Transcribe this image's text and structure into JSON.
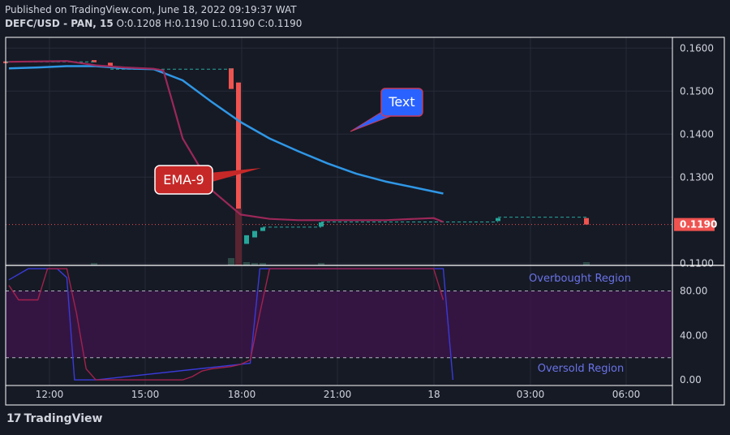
{
  "header": {
    "published": "Published on TradingView.com, June 18, 2022 09:19:37 WAT",
    "symbol": "DEFC/USD - PAN, 15",
    "ohlc": "O:0.1208 H:0.1190 L:0.1190 C:0.1190"
  },
  "footer": {
    "brand": "TradingView",
    "logo": "17"
  },
  "colors": {
    "ema": "#2f97e6",
    "price_line": "#9c2758",
    "up": "#26a69a",
    "down": "#ef5350",
    "osc": "#3a3ad8",
    "osc_signal": "#a3214c",
    "band": "#3a1548"
  },
  "annotations": {
    "text_callout": "Text",
    "ema_callout": "EMA-9"
  },
  "chart_data": [
    {
      "type": "line",
      "title": "DEFC/USD - PAN, 15",
      "x_ticks": [
        "12:00",
        "15:00",
        "18:00",
        "21:00",
        "18",
        "03:00",
        "06:00"
      ],
      "y_ticks": [
        "0.1600",
        "0.1500",
        "0.1400",
        "0.1300",
        "0.1100"
      ],
      "ylim": [
        0.1095,
        0.1625
      ],
      "current_price": "0.1190",
      "series": [
        {
          "name": "EMA-9",
          "x": [
            0,
            3,
            6,
            9,
            12,
            15,
            18,
            21,
            24,
            27,
            30,
            33,
            36,
            39,
            42,
            45
          ],
          "values": [
            0.1553,
            0.1555,
            0.1558,
            0.1558,
            0.1553,
            0.1551,
            0.1525,
            0.1475,
            0.1428,
            0.139,
            0.136,
            0.1332,
            0.1308,
            0.129,
            0.1276,
            0.1262
          ]
        },
        {
          "x": [
            0,
            3,
            6,
            9,
            12,
            15,
            16,
            17,
            18,
            20,
            21,
            24,
            27,
            30,
            33,
            36,
            39,
            42,
            44,
            45
          ],
          "values": [
            0.1568,
            0.1569,
            0.157,
            0.156,
            0.1555,
            0.1552,
            0.1548,
            0.147,
            0.139,
            0.1315,
            0.127,
            0.1213,
            0.1203,
            0.12,
            0.12,
            0.12,
            0.12,
            0.1203,
            0.1205,
            0.1196
          ]
        }
      ]
    },
    {
      "type": "line",
      "y_ticks": [
        "80.00",
        "40.00",
        "0.00"
      ],
      "ylim": [
        -5,
        103
      ],
      "bands": [
        20,
        80
      ],
      "labels": {
        "overbought": "Overbought Region",
        "oversold": "Oversold Region"
      },
      "series": [
        {
          "x": [
            0,
            2,
            3,
            5,
            6,
            6.8,
            7,
            8,
            9,
            25,
            26,
            27,
            45,
            46
          ],
          "values": [
            90,
            100,
            100,
            100,
            92,
            0,
            0,
            0,
            0,
            15,
            100,
            100,
            100,
            0
          ]
        },
        {
          "x": [
            0,
            1,
            3,
            4,
            5,
            6,
            7,
            8,
            9,
            18,
            19,
            20,
            21,
            22,
            23,
            24,
            25,
            26,
            27,
            44,
            45
          ],
          "values": [
            85,
            72,
            72,
            100,
            100,
            100,
            60,
            10,
            0,
            0,
            3,
            8,
            10,
            11,
            12,
            14,
            18,
            60,
            100,
            100,
            72
          ]
        }
      ]
    }
  ]
}
